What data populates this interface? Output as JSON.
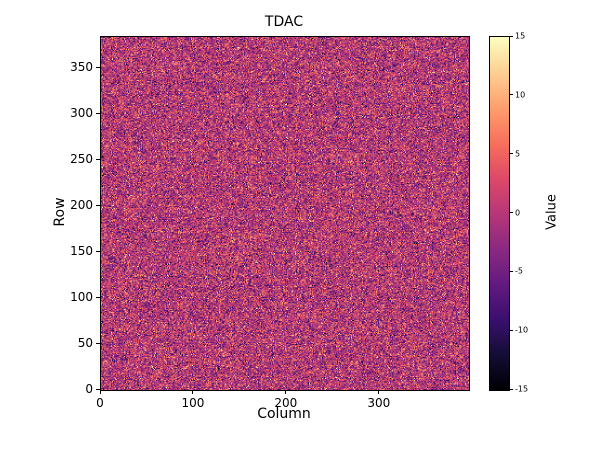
{
  "chart_data": {
    "type": "heatmap",
    "title": "TDAC",
    "xlabel": "Column",
    "ylabel": "Row",
    "colorbar_label": "Value",
    "xlim": [
      0,
      396
    ],
    "ylim": [
      0,
      384
    ],
    "clim": [
      -15,
      15
    ],
    "xticks": [
      0,
      100,
      200,
      300
    ],
    "yticks": [
      0,
      50,
      100,
      150,
      200,
      250,
      300,
      350
    ],
    "colorbar_ticks": [
      15,
      10,
      5,
      0,
      -5,
      -10,
      -15
    ],
    "colormap": "magma",
    "colormap_stops": [
      "#000004",
      "#140e36",
      "#3b0f70",
      "#641a80",
      "#8c2981",
      "#b73779",
      "#de4968",
      "#f7705c",
      "#fe9f6d",
      "#fecf92",
      "#fcfdbf"
    ],
    "grid": {
      "cols": 396,
      "rows": 384
    },
    "legend_position": "right-colorbar",
    "grid_lines": "off",
    "data_distribution": {
      "kind": "random-noise",
      "mean": 0,
      "std": 5,
      "clip_min": -15,
      "clip_max": 15,
      "seed": 42,
      "description": "per-pixel noise centered near 0 (magenta/purple) with bright orange/yellow and dark speckles"
    }
  }
}
